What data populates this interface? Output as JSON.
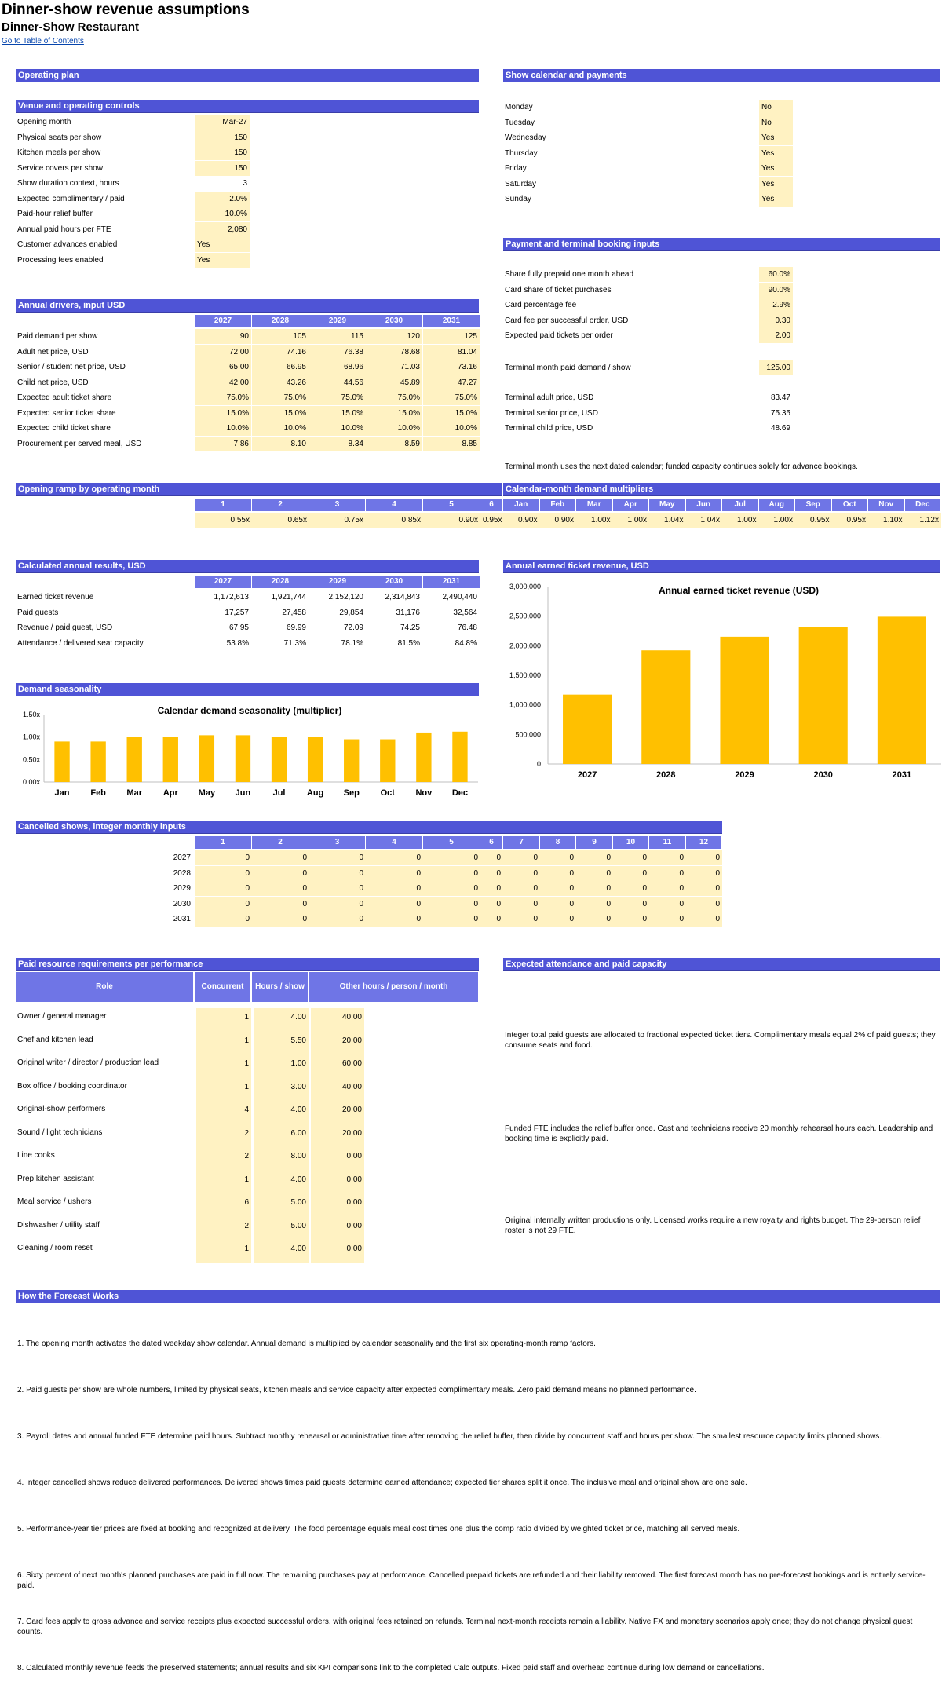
{
  "header": {
    "title": "Dinner-show revenue assumptions",
    "subtitle": "Dinner-Show Restaurant",
    "toc_link": "Go to Table of Contents"
  },
  "sections": {
    "operating_plan": "Operating plan",
    "show_calendar": "Show calendar and payments",
    "venue_controls": "Venue and operating controls",
    "payment_inputs": "Payment and terminal booking inputs",
    "annual_drivers": "Annual drivers, input USD",
    "opening_ramp": "Opening ramp by operating month",
    "calendar_multipliers": "Calendar-month demand multipliers",
    "annual_results": "Calculated annual results, USD",
    "annual_revenue_chart": "Annual earned ticket revenue, USD",
    "demand_seasonality": "Demand seasonality",
    "cancelled_shows": "Cancelled shows, integer monthly inputs",
    "paid_resources": "Paid resource requirements per performance",
    "attendance_capacity": "Expected attendance and paid capacity",
    "how_forecast": "How the Forecast Works"
  },
  "venue": [
    {
      "label": "Opening month",
      "value": "Mar-27",
      "input": true,
      "align": "right"
    },
    {
      "label": "Physical seats per show",
      "value": "150",
      "input": true,
      "align": "right"
    },
    {
      "label": "Kitchen meals per show",
      "value": "150",
      "input": true,
      "align": "right"
    },
    {
      "label": "Service covers per show",
      "value": "150",
      "input": true,
      "align": "right"
    },
    {
      "label": "Show duration context, hours",
      "value": "3",
      "input": false,
      "align": "right"
    },
    {
      "label": "Expected complimentary / paid",
      "value": "2.0%",
      "input": true,
      "align": "right"
    },
    {
      "label": "Paid-hour relief buffer",
      "value": "10.0%",
      "input": true,
      "align": "right"
    },
    {
      "label": "Annual paid hours per FTE",
      "value": "2,080",
      "input": true,
      "align": "right"
    },
    {
      "label": "Customer advances enabled",
      "value": "Yes",
      "input": true,
      "align": "left"
    },
    {
      "label": "Processing fees enabled",
      "value": "Yes",
      "input": true,
      "align": "left"
    }
  ],
  "calendar": [
    {
      "day": "Monday",
      "value": "No"
    },
    {
      "day": "Tuesday",
      "value": "No"
    },
    {
      "day": "Wednesday",
      "value": "Yes"
    },
    {
      "day": "Thursday",
      "value": "Yes"
    },
    {
      "day": "Friday",
      "value": "Yes"
    },
    {
      "day": "Saturday",
      "value": "Yes"
    },
    {
      "day": "Sunday",
      "value": "Yes"
    }
  ],
  "payment": [
    {
      "label": "Share fully prepaid one month ahead",
      "value": "60.0%"
    },
    {
      "label": "Card share of ticket purchases",
      "value": "90.0%"
    },
    {
      "label": "Card percentage fee",
      "value": "2.9%"
    },
    {
      "label": "Card fee per successful order, USD",
      "value": "0.30"
    },
    {
      "label": "Expected paid tickets per order",
      "value": "2.00"
    }
  ],
  "terminal_demand": {
    "label": "Terminal month paid demand / show",
    "value": "125.00"
  },
  "terminal_prices": [
    {
      "label": "Terminal adult price, USD",
      "value": "83.47"
    },
    {
      "label": "Terminal senior price, USD",
      "value": "75.35"
    },
    {
      "label": "Terminal child price, USD",
      "value": "48.69"
    }
  ],
  "terminal_note": "Terminal month uses the next dated calendar; funded capacity continues solely for advance bookings.",
  "years": [
    "2027",
    "2028",
    "2029",
    "2030",
    "2031"
  ],
  "drivers": [
    {
      "label": "Paid demand per show",
      "values": [
        "90",
        "105",
        "115",
        "120",
        "125"
      ]
    },
    {
      "label": "Adult net price, USD",
      "values": [
        "72.00",
        "74.16",
        "76.38",
        "78.68",
        "81.04"
      ]
    },
    {
      "label": "Senior / student net price, USD",
      "values": [
        "65.00",
        "66.95",
        "68.96",
        "71.03",
        "73.16"
      ]
    },
    {
      "label": "Child net price, USD",
      "values": [
        "42.00",
        "43.26",
        "44.56",
        "45.89",
        "47.27"
      ]
    },
    {
      "label": "Expected adult ticket share",
      "values": [
        "75.0%",
        "75.0%",
        "75.0%",
        "75.0%",
        "75.0%"
      ]
    },
    {
      "label": "Expected senior ticket share",
      "values": [
        "15.0%",
        "15.0%",
        "15.0%",
        "15.0%",
        "15.0%"
      ]
    },
    {
      "label": "Expected child ticket share",
      "values": [
        "10.0%",
        "10.0%",
        "10.0%",
        "10.0%",
        "10.0%"
      ]
    },
    {
      "label": "Procurement per served meal, USD",
      "values": [
        "7.86",
        "8.10",
        "8.34",
        "8.59",
        "8.85"
      ]
    }
  ],
  "ramp": {
    "months": [
      "1",
      "2",
      "3",
      "4",
      "5",
      "6"
    ],
    "values": [
      "0.55x",
      "0.65x",
      "0.75x",
      "0.85x",
      "0.90x",
      "0.95x"
    ]
  },
  "multipliers": {
    "months": [
      "Jan",
      "Feb",
      "Mar",
      "Apr",
      "May",
      "Jun",
      "Jul",
      "Aug",
      "Sep",
      "Oct",
      "Nov",
      "Dec"
    ],
    "values": [
      "0.90x",
      "0.90x",
      "1.00x",
      "1.00x",
      "1.04x",
      "1.04x",
      "1.00x",
      "1.00x",
      "0.95x",
      "0.95x",
      "1.10x",
      "1.12x"
    ]
  },
  "results": [
    {
      "label": "Earned ticket revenue",
      "values": [
        "1,172,613",
        "1,921,744",
        "2,152,120",
        "2,314,843",
        "2,490,440"
      ]
    },
    {
      "label": "Paid guests",
      "values": [
        "17,257",
        "27,458",
        "29,854",
        "31,176",
        "32,564"
      ]
    },
    {
      "label": "Revenue / paid guest, USD",
      "values": [
        "67.95",
        "69.99",
        "72.09",
        "74.25",
        "76.48"
      ]
    },
    {
      "label": "Attendance / delivered seat capacity",
      "values": [
        "53.8%",
        "71.3%",
        "78.1%",
        "81.5%",
        "84.8%"
      ]
    }
  ],
  "chart_data": [
    {
      "type": "bar",
      "title": "Annual earned ticket revenue (USD)",
      "categories": [
        "2027",
        "2028",
        "2029",
        "2030",
        "2031"
      ],
      "values": [
        1172613,
        1921744,
        2152120,
        2314843,
        2490440
      ],
      "ylim": [
        0,
        3000000
      ],
      "yticks": [
        "0",
        "500,000",
        "1,000,000",
        "1,500,000",
        "2,000,000",
        "2,500,000",
        "3,000,000"
      ],
      "color": "#ffc000"
    },
    {
      "type": "bar",
      "title": "Calendar demand seasonality (multiplier)",
      "categories": [
        "Jan",
        "Feb",
        "Mar",
        "Apr",
        "May",
        "Jun",
        "Jul",
        "Aug",
        "Sep",
        "Oct",
        "Nov",
        "Dec"
      ],
      "values": [
        0.9,
        0.9,
        1.0,
        1.0,
        1.04,
        1.04,
        1.0,
        1.0,
        0.95,
        0.95,
        1.1,
        1.12
      ],
      "ylim": [
        0,
        1.5
      ],
      "yticks": [
        "0.00x",
        "0.50x",
        "1.00x",
        "1.50x"
      ],
      "color": "#ffc000"
    }
  ],
  "cancelled": {
    "months": [
      "1",
      "2",
      "3",
      "4",
      "5",
      "6",
      "7",
      "8",
      "9",
      "10",
      "11",
      "12"
    ],
    "rows": [
      {
        "year": "2027",
        "values": [
          "0",
          "0",
          "0",
          "0",
          "0",
          "0",
          "0",
          "0",
          "0",
          "0",
          "0",
          "0"
        ]
      },
      {
        "year": "2028",
        "values": [
          "0",
          "0",
          "0",
          "0",
          "0",
          "0",
          "0",
          "0",
          "0",
          "0",
          "0",
          "0"
        ]
      },
      {
        "year": "2029",
        "values": [
          "0",
          "0",
          "0",
          "0",
          "0",
          "0",
          "0",
          "0",
          "0",
          "0",
          "0",
          "0"
        ]
      },
      {
        "year": "2030",
        "values": [
          "0",
          "0",
          "0",
          "0",
          "0",
          "0",
          "0",
          "0",
          "0",
          "0",
          "0",
          "0"
        ]
      },
      {
        "year": "2031",
        "values": [
          "0",
          "0",
          "0",
          "0",
          "0",
          "0",
          "0",
          "0",
          "0",
          "0",
          "0",
          "0"
        ]
      }
    ]
  },
  "resources": {
    "headers": [
      "Role",
      "Concurrent",
      "Hours / show",
      "Other hours / person / month"
    ],
    "rows": [
      {
        "role": "Owner / general manager",
        "concurrent": "1",
        "hours": "4.00",
        "other": "40.00"
      },
      {
        "role": "Chef and kitchen lead",
        "concurrent": "1",
        "hours": "5.50",
        "other": "20.00"
      },
      {
        "role": "Original writer / director / production lead",
        "concurrent": "1",
        "hours": "1.00",
        "other": "60.00"
      },
      {
        "role": "Box office / booking coordinator",
        "concurrent": "1",
        "hours": "3.00",
        "other": "40.00"
      },
      {
        "role": "Original-show performers",
        "concurrent": "4",
        "hours": "4.00",
        "other": "20.00"
      },
      {
        "role": "Sound / light technicians",
        "concurrent": "2",
        "hours": "6.00",
        "other": "20.00"
      },
      {
        "role": "Line cooks",
        "concurrent": "2",
        "hours": "8.00",
        "other": "0.00"
      },
      {
        "role": "Prep kitchen assistant",
        "concurrent": "1",
        "hours": "4.00",
        "other": "0.00"
      },
      {
        "role": "Meal service / ushers",
        "concurrent": "6",
        "hours": "5.00",
        "other": "0.00"
      },
      {
        "role": "Dishwasher / utility staff",
        "concurrent": "2",
        "hours": "5.00",
        "other": "0.00"
      },
      {
        "role": "Cleaning / room reset",
        "concurrent": "1",
        "hours": "4.00",
        "other": "0.00"
      }
    ]
  },
  "attendance_notes": [
    "Integer total paid guests are allocated to fractional expected ticket tiers. Complimentary meals equal 2% of paid guests; they consume seats and food.",
    "Funded FTE includes the relief buffer once. Cast and technicians receive 20 monthly rehearsal hours each. Leadership and booking time is explicitly paid.",
    "Original internally written productions only. Licensed works require a new royalty and rights budget. The 29-person relief roster is not 29 FTE."
  ],
  "forecast_steps": [
    "1. The opening month activates the dated weekday show calendar. Annual demand is multiplied by calendar seasonality and the first six operating-month ramp factors.",
    "2. Paid guests per show are whole numbers, limited by physical seats, kitchen meals and service capacity after expected complimentary meals. Zero paid demand means no planned performance.",
    "3. Payroll dates and annual funded FTE determine paid hours. Subtract monthly rehearsal or administrative time after removing the relief buffer, then divide by concurrent staff and hours per show. The smallest resource capacity limits planned shows.",
    "4. Integer cancelled shows reduce delivered performances. Delivered shows times paid guests determine earned attendance; expected tier shares split it once. The inclusive meal and original show are one sale.",
    "5. Performance-year tier prices are fixed at booking and recognized at delivery. The food percentage equals meal cost times one plus the comp ratio divided by weighted ticket price, matching all served meals.",
    "6. Sixty percent of next month's planned purchases are paid in full now. The remaining purchases pay at performance. Cancelled prepaid tickets are refunded and their liability removed. The first forecast month has no pre-forecast bookings and is entirely service-paid.",
    "7. Card fees apply to gross advance and service receipts plus expected successful orders, with original fees retained on refunds. Terminal next-month receipts remain a liability. Native FX and monetary scenarios apply once; they do not change physical guest counts.",
    "8. Calculated monthly revenue feeds the preserved statements; annual results and six KPI comparisons link to the completed Calc outputs. Fixed paid staff and overhead continue during low demand or cancellations."
  ]
}
